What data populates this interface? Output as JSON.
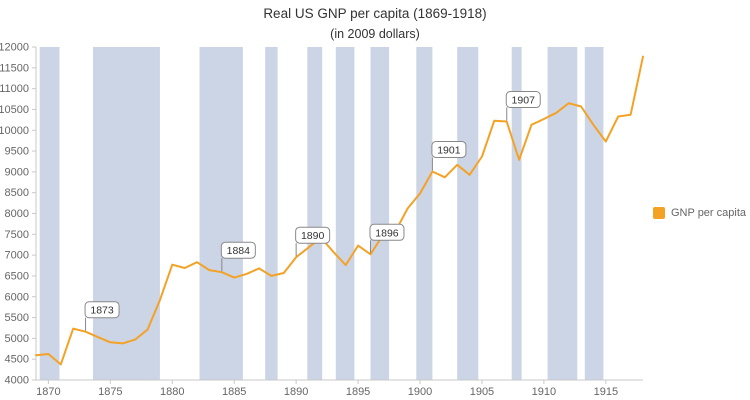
{
  "title": "Real US GNP per capita (1869-1918)",
  "subtitle": "(in 2009 dollars)",
  "legend": {
    "label": "GNP per capita"
  },
  "colors": {
    "line": "#f4a226",
    "recession_band": "#ccd5e5",
    "axis": "#c9c9c9",
    "tick_text": "#666666",
    "title_text": "#333333",
    "flag_bg": "#ffffff",
    "flag_border": "#888888",
    "flag_text": "#333333"
  },
  "chart_data": {
    "type": "line",
    "title": "Real US GNP per capita (1869-1918)",
    "subtitle": "(in 2009 dollars)",
    "xlabel": "",
    "ylabel": "",
    "xlim": [
      1869,
      1918
    ],
    "ylim": [
      4000,
      12000
    ],
    "grid": false,
    "legend_position": "right",
    "x_ticks": [
      1870,
      1875,
      1880,
      1885,
      1890,
      1895,
      1900,
      1905,
      1910,
      1915
    ],
    "y_ticks": [
      4000,
      4500,
      5000,
      5500,
      6000,
      6500,
      7000,
      7500,
      8000,
      8500,
      9000,
      9500,
      10000,
      10500,
      11000,
      11500,
      12000
    ],
    "x_start": 1869,
    "x_step": 1,
    "series": [
      {
        "name": "GNP per capita",
        "values": [
          4595,
          4625,
          4375,
          5235,
          5160,
          5030,
          4905,
          4880,
          4970,
          5210,
          5920,
          6770,
          6690,
          6830,
          6640,
          6590,
          6460,
          6550,
          6680,
          6500,
          6570,
          6950,
          7180,
          7420,
          7080,
          6760,
          7230,
          7020,
          7480,
          7560,
          8120,
          8480,
          9010,
          8870,
          9170,
          8930,
          9370,
          10230,
          10210,
          9290,
          10130,
          10270,
          10420,
          10650,
          10570,
          10130,
          9730,
          10330,
          10370,
          11770
        ]
      }
    ],
    "recession_bands": [
      [
        1869.3,
        1870.9
      ],
      [
        1873.6,
        1879.0
      ],
      [
        1882.2,
        1885.7
      ],
      [
        1887.5,
        1888.5
      ],
      [
        1890.9,
        1892.1
      ],
      [
        1893.2,
        1894.7
      ],
      [
        1896.0,
        1897.5
      ],
      [
        1899.7,
        1901.0
      ],
      [
        1903.0,
        1904.7
      ],
      [
        1907.4,
        1908.2
      ],
      [
        1910.3,
        1912.7
      ],
      [
        1913.3,
        1914.8
      ]
    ],
    "flags": [
      {
        "year": 1873,
        "label": "1873"
      },
      {
        "year": 1884,
        "label": "1884"
      },
      {
        "year": 1890,
        "label": "1890"
      },
      {
        "year": 1896,
        "label": "1896"
      },
      {
        "year": 1901,
        "label": "1901"
      },
      {
        "year": 1907,
        "label": "1907"
      }
    ]
  }
}
